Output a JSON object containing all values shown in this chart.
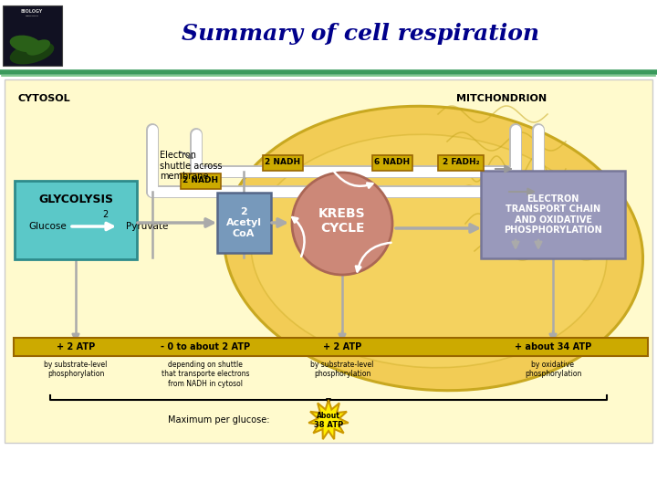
{
  "title": "Summary of cell respiration",
  "title_color": "#00008B",
  "title_fontsize": 18,
  "bg_color": "#FFFFFF",
  "header_line_color1": "#3A9A5C",
  "header_line_color2": "#6ABF7B",
  "diagram_bg": "#FFFACD",
  "cytosol_label": "CYTOSOL",
  "mitochondrion_label": "MITCHONDRION",
  "glycolysis_label": "GLYCOLYSIS",
  "glycolysis_color": "#5BC8C8",
  "glycolysis_border": "#2E8B8B",
  "acetyl_label": "2\nAcetyl\nCoA",
  "acetyl_color": "#7799BB",
  "acetyl_border": "#556688",
  "krebs_label": "KREBS\nCYCLE",
  "krebs_color": "#CC8878",
  "krebs_border": "#AA6655",
  "etc_label": "ELECTRON\nTRANSPORT CHAIN\nAND OXIDATIVE\nPHOSPHORYLATION",
  "etc_color": "#9999BB",
  "etc_border": "#777799",
  "nadh_fill": "#CCAA00",
  "nadh_border": "#996600",
  "atp_bar_fill": "#CCAA00",
  "atp_bar_border": "#996600",
  "atp_labels": [
    "+ 2 ATP",
    "- 0 to about 2 ATP",
    "+ 2 ATP",
    "+ about 34 ATP"
  ],
  "atp_sub": [
    "by substrate-level\nphosphorylation",
    "depending on shuttle\nthat transporte electrons\nfrom NADH in cytosol",
    "by substrate-level\nphosphorylation",
    "by oxidative\nphosphorylation"
  ],
  "max_per_glucose": "Maximum per glucose:",
  "about_38": "About\n38 ATP",
  "electron_shuttle": "Electron\nshuttle across\nmembrane",
  "mito_fill": "#F2CC55",
  "mito_border": "#C8A820",
  "cristate_color": "#C8A820",
  "arrow_color": "#CCCCCC",
  "arrow_border": "#999999",
  "line_color": "#AAAAAA",
  "star_fill": "#FFEE00",
  "star_border": "#CC9900",
  "book_fill": "#111122",
  "book_plant_dark": "#1A4010",
  "book_plant_light": "#2A6018"
}
